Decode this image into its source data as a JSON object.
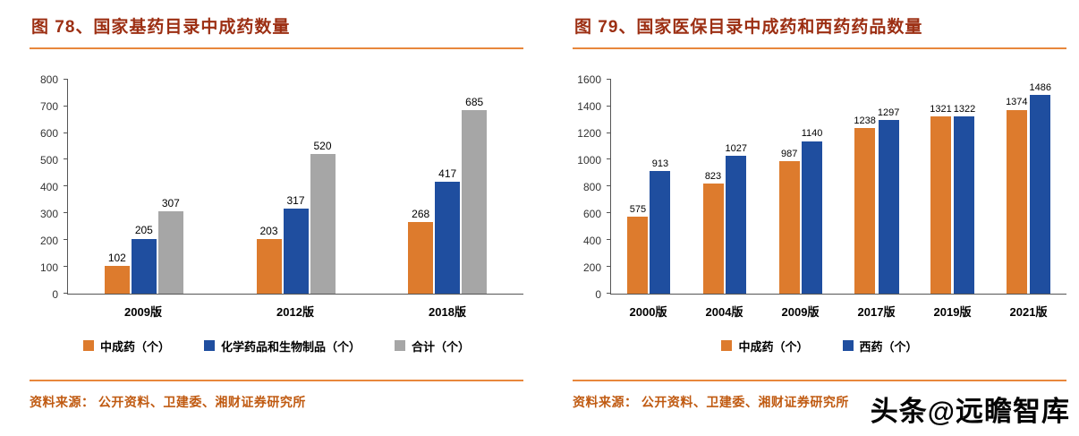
{
  "colors": {
    "title_text": "#9C2F13",
    "accent_line": "#E8873C",
    "source_text": "#C05A11",
    "bar_orange": "#DD7B2D",
    "bar_blue": "#1F4E9F",
    "bar_gray": "#A6A6A6",
    "axis_text": "#333333"
  },
  "chart_data": [
    {
      "type": "bar",
      "title": "图 78、国家基药目录中成药数量",
      "categories": [
        "2009版",
        "2012版",
        "2018版"
      ],
      "series": [
        {
          "name": "中成药（个）",
          "color": "#DD7B2D",
          "values": [
            102,
            203,
            268
          ]
        },
        {
          "name": "化学药品和生物制品（个）",
          "color": "#1F4E9F",
          "values": [
            205,
            317,
            417
          ]
        },
        {
          "name": "合计（个）",
          "color": "#A6A6A6",
          "values": [
            307,
            520,
            685
          ]
        }
      ],
      "ylim": [
        0,
        800
      ],
      "ytick_step": 100,
      "grid": false,
      "legend_position": "bottom",
      "source": "资料来源：  公开资料、卫建委、湘财证券研究所"
    },
    {
      "type": "bar",
      "title": "图 79、国家医保目录中成药和西药药品数量",
      "categories": [
        "2000版",
        "2004版",
        "2009版",
        "2017版",
        "2019版",
        "2021版"
      ],
      "series": [
        {
          "name": "中成药（个）",
          "color": "#DD7B2D",
          "values": [
            575,
            823,
            987,
            1238,
            1321,
            1374
          ]
        },
        {
          "name": "西药（个）",
          "color": "#1F4E9F",
          "values": [
            913,
            1027,
            1140,
            1297,
            1322,
            1486
          ]
        }
      ],
      "ylim": [
        0,
        1600
      ],
      "ytick_step": 200,
      "grid": false,
      "legend_position": "bottom",
      "source": "资料来源：  公开资料、卫建委、湘财证券研究所"
    }
  ],
  "watermark": {
    "text": "头条@远瞻智库"
  }
}
